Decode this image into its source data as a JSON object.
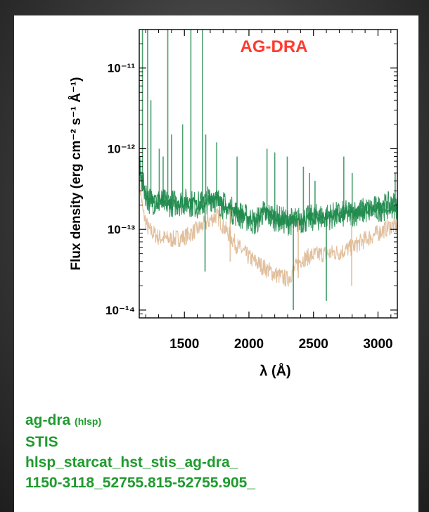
{
  "colors": {
    "series_1": "#1f8a4c",
    "series_2": "#dcb48c",
    "title": "#ff3b2f",
    "caption": "#1f9a2e"
  },
  "chart_data": {
    "type": "line",
    "title": "AG-DRA",
    "xlabel": "λ (Å)",
    "ylabel": "Flux density (erg cm⁻² s⁻¹ Å⁻¹)",
    "xlim": [
      1150,
      3150
    ],
    "ylim": [
      8e-15,
      3e-11
    ],
    "yscale": "log",
    "x_ticks": [
      1500,
      2000,
      2500,
      3000
    ],
    "y_ticks": [
      "10⁻¹¹",
      "10⁻¹²",
      "10⁻¹³",
      "10⁻¹⁴"
    ],
    "y_tick_values": [
      1e-11,
      1e-12,
      1e-13,
      1e-14
    ],
    "legend": "none",
    "grid": false,
    "series": [
      {
        "color": "#1f8a4c",
        "x": [
          1150,
          1180,
          1220,
          1300,
          1400,
          1500,
          1600,
          1650,
          1700,
          1750,
          1800,
          1900,
          2000,
          2050,
          2100,
          2200,
          2300,
          2400,
          2500,
          2600,
          2700,
          2800,
          2900,
          3000,
          3100
        ],
        "y": [
          6e-13,
          3.5e-13,
          2.3e-13,
          2.2e-13,
          2.1e-13,
          2.2e-13,
          2e-13,
          2.1e-13,
          2.5e-13,
          2.3e-13,
          2e-13,
          1.6e-13,
          1.35e-13,
          1.2e-13,
          1.6e-13,
          1.4e-13,
          1.25e-13,
          1.3e-13,
          1.4e-13,
          1.45e-13,
          1.5e-13,
          1.6e-13,
          1.7e-13,
          1.8e-13,
          2e-13
        ]
      },
      {
        "color": "#dcb48c",
        "x": [
          1150,
          1180,
          1220,
          1300,
          1400,
          1500,
          1600,
          1700,
          1750,
          1800,
          1900,
          2000,
          2100,
          2200,
          2300,
          2400,
          2500,
          2600,
          2700,
          2800,
          2900,
          3000,
          3100
        ],
        "y": [
          4e-13,
          1.6e-13,
          1e-13,
          8e-14,
          7.5e-14,
          8e-14,
          1e-13,
          1.3e-13,
          1.5e-13,
          1.1e-13,
          6.5e-14,
          4.5e-14,
          3.5e-14,
          2.8e-14,
          2.4e-14,
          4.2e-14,
          4.8e-14,
          5e-14,
          5.2e-14,
          6e-14,
          7.5e-14,
          9e-14,
          1.1e-13
        ]
      }
    ],
    "emission_lines": [
      {
        "x": 1175,
        "y": 3e-11
      },
      {
        "x": 1215,
        "y": 3e-11
      },
      {
        "x": 1240,
        "y": 4e-12
      },
      {
        "x": 1305,
        "y": 1e-12
      },
      {
        "x": 1335,
        "y": 8e-13
      },
      {
        "x": 1371,
        "y": 3e-11
      },
      {
        "x": 1400,
        "y": 1.5e-12
      },
      {
        "x": 1486,
        "y": 2e-12
      },
      {
        "x": 1550,
        "y": 3e-11
      },
      {
        "x": 1640,
        "y": 3e-11
      },
      {
        "x": 1665,
        "y": 1.5e-12
      },
      {
        "x": 1750,
        "y": 1.2e-12
      },
      {
        "x": 1908,
        "y": 8e-13
      },
      {
        "x": 2140,
        "y": 1e-12
      },
      {
        "x": 2200,
        "y": 9e-13
      },
      {
        "x": 2297,
        "y": 8e-13
      },
      {
        "x": 2422,
        "y": 6e-13
      },
      {
        "x": 2470,
        "y": 5e-13
      },
      {
        "x": 2512,
        "y": 4e-13
      },
      {
        "x": 2735,
        "y": 8e-13
      },
      {
        "x": 2800,
        "y": 5e-13
      },
      {
        "x": 3133,
        "y": 5e-13
      }
    ],
    "absorption_lines": [
      {
        "x": 1660,
        "y": 3e-14
      },
      {
        "x": 1855,
        "y": 4e-14
      },
      {
        "x": 2344,
        "y": 1e-14
      },
      {
        "x": 2382,
        "y": 2.5e-14
      },
      {
        "x": 2600,
        "y": 1.3e-14
      },
      {
        "x": 2796,
        "y": 2e-14
      }
    ]
  },
  "caption": {
    "name": "ag-dra",
    "tag": "(hlsp)",
    "instrument": "STIS",
    "file_line_1": "hlsp_starcat_hst_stis_ag-dra_",
    "file_line_2": "1150-3118_52755.815-52755.905_"
  }
}
